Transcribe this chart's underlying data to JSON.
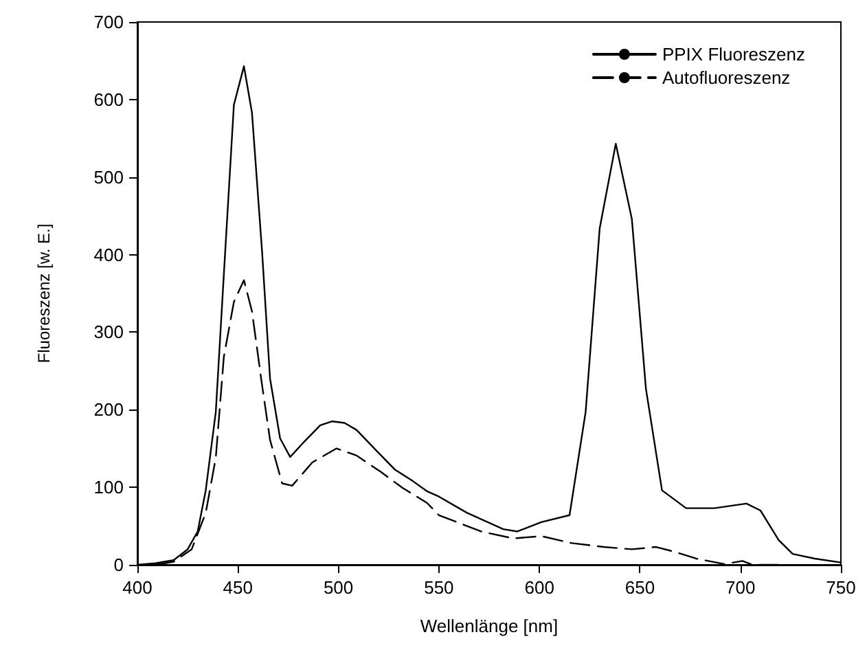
{
  "chart_data": {
    "type": "line",
    "xlabel": "Wellenlänge [nm]",
    "ylabel": "Fluoreszenz [w. E.]",
    "xlim": [
      400,
      750
    ],
    "xticks": [
      400,
      450,
      500,
      550,
      600,
      650,
      700,
      750
    ],
    "ylim": [
      0,
      700
    ],
    "yticks": [
      0,
      100,
      200,
      300,
      400,
      500,
      600,
      700
    ],
    "grid": false,
    "legend": "top right",
    "marker": "none",
    "series": [
      {
        "name": "PPIX Fluoreszenz",
        "color": "#000000",
        "line_style": "solid",
        "x": [
          400,
          409,
          418,
          425,
          430,
          434,
          439,
          443,
          448,
          453,
          457,
          462,
          466,
          471,
          476,
          482,
          491,
          497,
          503,
          509,
          519,
          528,
          537,
          544,
          550,
          564,
          582,
          589,
          601,
          615,
          623,
          630,
          638,
          646,
          653,
          661,
          673,
          687,
          703,
          710,
          719,
          726,
          737,
          750
        ],
        "values": [
          0,
          2,
          6,
          20,
          43,
          96,
          197,
          374,
          593,
          643,
          583,
          405,
          240,
          163,
          139,
          156,
          180,
          185,
          183,
          174,
          147,
          123,
          108,
          95,
          88,
          67,
          46,
          43,
          55,
          64,
          197,
          434,
          543,
          446,
          227,
          96,
          73,
          73,
          79,
          70,
          32,
          14,
          8,
          3
        ]
      },
      {
        "name": "Autofluoreszenz",
        "color": "#000000",
        "line_style": "dashed",
        "x": [
          409,
          418,
          427,
          434,
          439,
          443,
          448,
          453,
          457,
          462,
          466,
          472,
          477,
          487,
          499,
          509,
          521,
          532,
          544,
          550,
          571,
          587,
          601,
          616,
          632,
          646,
          658,
          667,
          678,
          692,
          701,
          706,
          720
        ],
        "values": [
          0,
          4,
          20,
          67,
          138,
          268,
          339,
          367,
          327,
          232,
          161,
          105,
          102,
          132,
          150,
          141,
          120,
          99,
          80,
          64,
          43,
          34,
          37,
          28,
          23,
          20,
          23,
          17,
          8,
          1,
          5,
          0,
          0
        ]
      }
    ]
  }
}
